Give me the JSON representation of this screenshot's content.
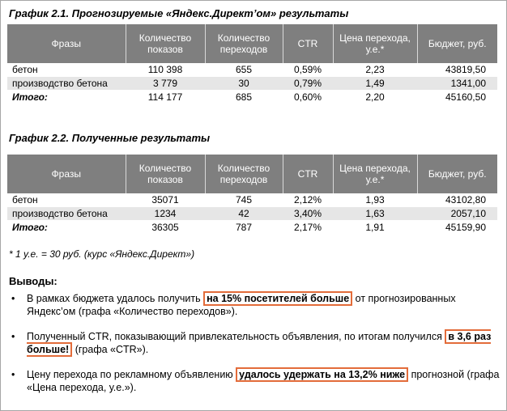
{
  "table1": {
    "title": "График 2.1. Прогнозируемые  «Яндекс.Директ’ом» результаты",
    "headers": [
      "Фразы",
      "Количество показов",
      "Количество переходов",
      "CTR",
      "Цена перехода, у.е.*",
      "Бюджет, руб."
    ],
    "rows": [
      {
        "phrase": "бетон",
        "shows": "110 398",
        "clicks": "655",
        "ctr": "0,59%",
        "price": "2,23",
        "budget": "43819,50"
      },
      {
        "phrase": "производство бетона",
        "shows": "3 779",
        "clicks": "30",
        "ctr": "0,79%",
        "price": "1,49",
        "budget": "1341,00"
      },
      {
        "phrase": "Итого:",
        "shows": "114 177",
        "clicks": "685",
        "ctr": "0,60%",
        "price": "2,20",
        "budget": "45160,50"
      }
    ]
  },
  "table2": {
    "title": "График 2.2. Полученные  результаты",
    "headers": [
      "Фразы",
      "Количество показов",
      "Количество переходов",
      "CTR",
      "Цена перехода, у.е.*",
      "Бюджет, руб."
    ],
    "rows": [
      {
        "phrase": "бетон",
        "shows": "35071",
        "clicks": "745",
        "ctr": "2,12%",
        "price": "1,93",
        "budget": "43102,80"
      },
      {
        "phrase": "производство бетона",
        "shows": "1234",
        "clicks": "42",
        "ctr": "3,40%",
        "price": "1,63",
        "budget": "2057,10"
      },
      {
        "phrase": "Итого:",
        "shows": "36305",
        "clicks": "787",
        "ctr": "2,17%",
        "price": "1,91",
        "budget": "45159,90"
      }
    ]
  },
  "footnote": "* 1 у.е. = 30 руб. (курс «Яндекс.Директ»)",
  "conclusions_title": "Выводы:",
  "bullets": [
    {
      "before": "В рамках бюджета удалось получить",
      "highlight": "на 15% посетителей больше",
      "after": "от прогнозированных Яндекс’ом (графа «Количество переходов»)."
    },
    {
      "before": "Полученный CTR, показывающий привлекательность объявления, по итогам получился",
      "highlight": "в 3,6 раз больше!",
      "after": "(графа «CTR»)."
    },
    {
      "before": "Цену перехода по рекламному объявлению",
      "highlight": "удалось удержать на 13,2% ниже",
      "after": "прогнозной (графа «Цена перехода, у.е.»)."
    }
  ],
  "colors": {
    "header_bg": "#7f7f7f",
    "alt_row_bg": "#e6e6e6",
    "highlight_border": "#e36c3a"
  }
}
